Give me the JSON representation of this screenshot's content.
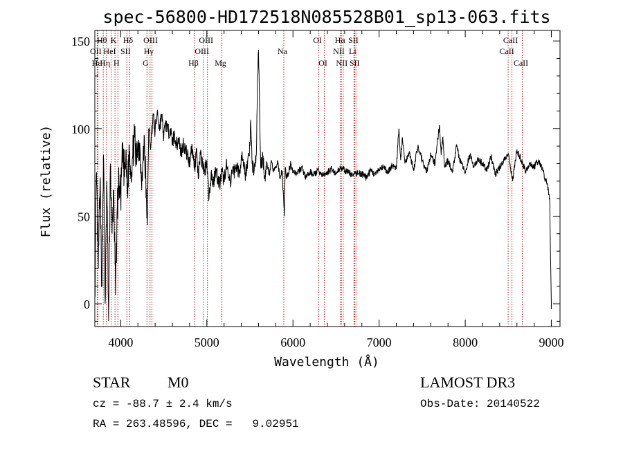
{
  "chart_data": {
    "type": "line",
    "title": "spec-56800-HD172518N085528B01_sp13-063.fits",
    "xlabel": "Wavelength (Å)",
    "ylabel": "Flux (relative)",
    "xlim": [
      3700,
      9100
    ],
    "ylim": [
      -13,
      156
    ],
    "xticks": [
      4000,
      5000,
      6000,
      7000,
      8000,
      9000
    ],
    "yticks": [
      0,
      50,
      100,
      150
    ],
    "series": [
      {
        "name": "flux",
        "x": [
          3700,
          3720,
          3740,
          3760,
          3780,
          3800,
          3820,
          3840,
          3860,
          3880,
          3900,
          3920,
          3940,
          3960,
          3980,
          4000,
          4020,
          4040,
          4060,
          4080,
          4100,
          4120,
          4140,
          4160,
          4180,
          4200,
          4225,
          4250,
          4275,
          4300,
          4310,
          4325,
          4350,
          4375,
          4400,
          4425,
          4450,
          4475,
          4500,
          4525,
          4550,
          4575,
          4600,
          4625,
          4650,
          4675,
          4700,
          4725,
          4750,
          4775,
          4800,
          4820,
          4840,
          4860,
          4880,
          4900,
          4925,
          4950,
          4975,
          5000,
          5025,
          5050,
          5075,
          5100,
          5125,
          5150,
          5175,
          5200,
          5225,
          5250,
          5275,
          5300,
          5325,
          5350,
          5375,
          5400,
          5425,
          5450,
          5475,
          5500,
          5510,
          5525,
          5550,
          5575,
          5590,
          5600,
          5625,
          5650,
          5675,
          5700,
          5725,
          5750,
          5775,
          5800,
          5825,
          5850,
          5875,
          5900,
          5910,
          5925,
          5950,
          5975,
          6000,
          6050,
          6100,
          6150,
          6200,
          6250,
          6300,
          6350,
          6400,
          6450,
          6500,
          6550,
          6600,
          6650,
          6700,
          6750,
          6800,
          6850,
          6900,
          6950,
          7000,
          7050,
          7100,
          7150,
          7200,
          7230,
          7250,
          7270,
          7300,
          7350,
          7400,
          7450,
          7500,
          7550,
          7600,
          7650,
          7700,
          7720,
          7740,
          7760,
          7800,
          7850,
          7900,
          7950,
          8000,
          8050,
          8100,
          8150,
          8200,
          8250,
          8300,
          8350,
          8400,
          8450,
          8500,
          8550,
          8600,
          8650,
          8700,
          8750,
          8800,
          8850,
          8900,
          8950,
          8980,
          9000
        ],
        "y": [
          5,
          75,
          20,
          70,
          10,
          85,
          0,
          70,
          -10,
          80,
          40,
          65,
          5,
          55,
          70,
          60,
          85,
          75,
          80,
          65,
          90,
          75,
          85,
          95,
          80,
          92,
          88,
          70,
          95,
          55,
          45,
          100,
          90,
          108,
          98,
          110,
          100,
          108,
          95,
          104,
          98,
          100,
          92,
          97,
          90,
          95,
          85,
          92,
          88,
          85,
          80,
          90,
          85,
          78,
          88,
          72,
          85,
          80,
          75,
          82,
          60,
          75,
          68,
          78,
          72,
          68,
          75,
          70,
          80,
          72,
          68,
          78,
          75,
          80,
          72,
          85,
          78,
          74,
          82,
          90,
          105,
          80,
          76,
          85,
          130,
          145,
          78,
          84,
          72,
          80,
          74,
          82,
          75,
          78,
          80,
          72,
          76,
          50,
          78,
          72,
          75,
          80,
          76,
          74,
          78,
          72,
          75,
          74,
          76,
          73,
          75,
          77,
          74,
          78,
          76,
          75,
          73,
          75,
          74,
          72,
          76,
          74,
          76,
          78,
          75,
          79,
          77,
          100,
          82,
          95,
          80,
          87,
          76,
          90,
          82,
          75,
          85,
          80,
          102,
          85,
          95,
          78,
          82,
          75,
          90,
          80,
          75,
          85,
          78,
          82,
          80,
          76,
          84,
          74,
          78,
          82,
          86,
          70,
          88,
          82,
          76,
          80,
          78,
          82,
          76,
          68,
          60,
          -3
        ]
      }
    ],
    "lines": [
      {
        "label": "Hθ",
        "x": 3798,
        "row": 0
      },
      {
        "label": "OII",
        "x": 3727,
        "row": 1
      },
      {
        "label": "Hε",
        "x": 3737,
        "row": 2
      },
      {
        "label": "K",
        "x": 3934,
        "row": 0
      },
      {
        "label": "HeI",
        "x": 3889,
        "row": 1
      },
      {
        "label": "Hη",
        "x": 3835,
        "row": 2
      },
      {
        "label": "Hδ",
        "x": 4102,
        "row": 0
      },
      {
        "label": "SII",
        "x": 4072,
        "row": 1
      },
      {
        "label": "H",
        "x": 3968,
        "row": 2
      },
      {
        "label": "OIII",
        "x": 4363,
        "row": 0
      },
      {
        "label": "Hγ",
        "x": 4341,
        "row": 1
      },
      {
        "label": "G",
        "x": 4305,
        "row": 2
      },
      {
        "label": "OIII",
        "x": 5007,
        "row": 0
      },
      {
        "label": "OIII",
        "x": 4959,
        "row": 1
      },
      {
        "label": "Hβ",
        "x": 4861,
        "row": 2
      },
      {
        "label": "Mg",
        "x": 5175,
        "row": 2
      },
      {
        "label": "Na",
        "x": 5894,
        "row": 1
      },
      {
        "label": "OI",
        "x": 6300,
        "row": 0
      },
      {
        "label": "OI",
        "x": 6364,
        "row": 2
      },
      {
        "label": "Hα",
        "x": 6563,
        "row": 0
      },
      {
        "label": "NII",
        "x": 6548,
        "row": 1
      },
      {
        "label": "NII",
        "x": 6583,
        "row": 2
      },
      {
        "label": "SII",
        "x": 6717,
        "row": 0
      },
      {
        "label": "Li",
        "x": 6708,
        "row": 1
      },
      {
        "label": "SII",
        "x": 6731,
        "row": 2
      },
      {
        "label": "CaII",
        "x": 8542,
        "row": 0
      },
      {
        "label": "CaII",
        "x": 8498,
        "row": 1
      },
      {
        "label": "CaII",
        "x": 8662,
        "row": 2
      }
    ]
  },
  "footer": {
    "object_class": "STAR",
    "subclass": "M0",
    "survey": "LAMOST DR3",
    "redshift": "cz = -88.7 ± 2.4 km/s",
    "obs_date": "Obs-Date: 20140522",
    "coords": "RA = 263.48596, DEC =   9.02951"
  }
}
